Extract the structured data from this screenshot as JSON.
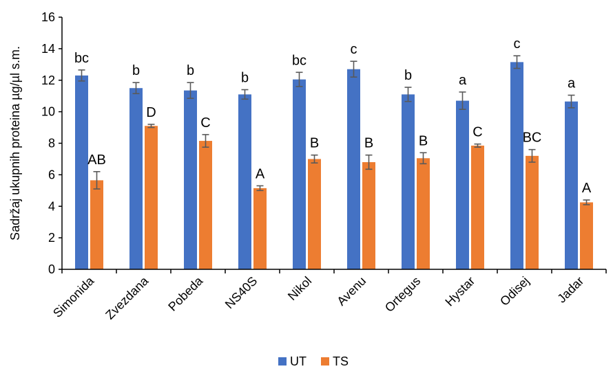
{
  "chart_data": {
    "type": "bar",
    "ylabel": "Sadržaj ukupnih proteina µg/µl s.m.",
    "ylim": [
      0,
      16
    ],
    "yticks": [
      0,
      2,
      4,
      6,
      8,
      10,
      12,
      14,
      16
    ],
    "grid": false,
    "legend_position": "bottom-center",
    "error_bars": true,
    "categories": [
      "Simonida",
      "Zvezdana",
      "Pobeda",
      "NS40S",
      "Nikol",
      "Avenu",
      "Ortegus",
      "Hystar",
      "Odisej",
      "Jadar"
    ],
    "series": [
      {
        "name": "UT",
        "color": "#4472C4",
        "values": [
          12.3,
          11.5,
          11.35,
          11.1,
          12.05,
          12.7,
          11.1,
          10.7,
          13.15,
          10.65
        ],
        "errors": [
          0.35,
          0.35,
          0.5,
          0.3,
          0.45,
          0.5,
          0.45,
          0.55,
          0.4,
          0.4
        ],
        "labels": [
          "bc",
          "b",
          "b",
          "b",
          "bc",
          "c",
          "b",
          "a",
          "c",
          "a"
        ]
      },
      {
        "name": "TS",
        "color": "#ED7D31",
        "values": [
          5.65,
          9.1,
          8.15,
          5.15,
          7.0,
          6.8,
          7.05,
          7.85,
          7.2,
          4.25
        ],
        "errors": [
          0.55,
          0.1,
          0.4,
          0.15,
          0.25,
          0.45,
          0.35,
          0.1,
          0.4,
          0.15
        ],
        "labels": [
          "AB",
          "D",
          "C",
          "A",
          "B",
          "B",
          "B",
          "C",
          "BC",
          "A"
        ]
      }
    ]
  }
}
